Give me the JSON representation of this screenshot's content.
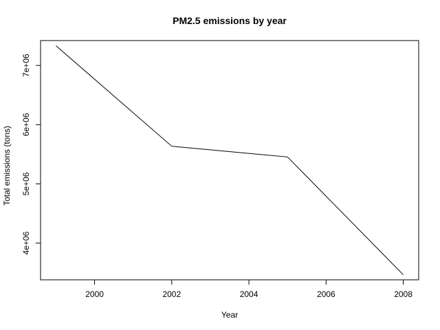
{
  "chart_data": {
    "type": "line",
    "title": "PM2.5 emissions by year",
    "xlabel": "Year",
    "ylabel": "Total emissions (tons)",
    "x": [
      1999,
      2002,
      2005,
      2008
    ],
    "series": [
      {
        "values": [
          7332967,
          5635780,
          5454703,
          3464206
        ]
      }
    ],
    "xlim": [
      1998.6,
      2008.4
    ],
    "ylim": [
      3380000,
      7420000
    ],
    "x_ticks": [
      2000,
      2002,
      2004,
      2006,
      2008
    ],
    "x_tick_labels": [
      "2000",
      "2002",
      "2004",
      "2006",
      "2008"
    ],
    "y_ticks": [
      4000000,
      5000000,
      6000000,
      7000000
    ],
    "y_tick_labels": [
      "4e+06",
      "5e+06",
      "6e+06",
      "7e+06"
    ],
    "grid": false,
    "line_color": "#000000"
  }
}
